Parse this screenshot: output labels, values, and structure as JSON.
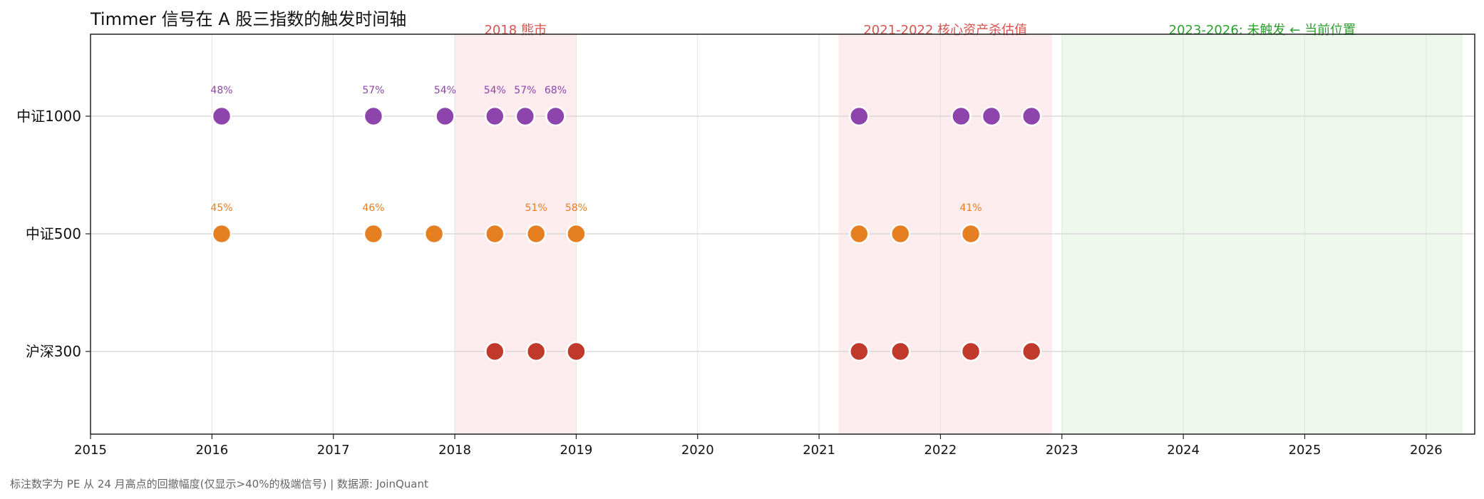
{
  "chart_data": {
    "type": "scatter",
    "title": "Timmer 信号在 A 股三指数的触发时间轴",
    "xlim": [
      2015,
      2026.4
    ],
    "x_ticks": [
      "2015",
      "2016",
      "2017",
      "2018",
      "2019",
      "2020",
      "2021",
      "2022",
      "2023",
      "2024",
      "2025",
      "2026"
    ],
    "grid": true,
    "bands": [
      {
        "label": "2018 熊市",
        "x": [
          2018.0,
          2019.0
        ],
        "color": "#fdecee",
        "text_color": "#d9534f"
      },
      {
        "label": "2021-2022 核心资产杀估值",
        "x": [
          2021.16,
          2022.92
        ],
        "color": "#fdecee",
        "text_color": "#d9534f"
      },
      {
        "label": "2023-2026: 未触发 ← 当前位置",
        "x": [
          2023.0,
          2026.3
        ],
        "color": "#eef7ec",
        "text_color": "#2ca02c"
      }
    ],
    "series": [
      {
        "name": "中证1000",
        "color": "#8e44ad",
        "points": [
          {
            "x": 2016.08,
            "label": "48%"
          },
          {
            "x": 2017.33,
            "label": "57%"
          },
          {
            "x": 2017.92,
            "label": "54%"
          },
          {
            "x": 2018.33,
            "label": "54%"
          },
          {
            "x": 2018.58,
            "label": "57%"
          },
          {
            "x": 2018.83,
            "label": "68%"
          },
          {
            "x": 2021.33,
            "label": ""
          },
          {
            "x": 2022.17,
            "label": ""
          },
          {
            "x": 2022.42,
            "label": ""
          },
          {
            "x": 2022.75,
            "label": ""
          }
        ]
      },
      {
        "name": "中证500",
        "color": "#e67e22",
        "points": [
          {
            "x": 2016.08,
            "label": "45%"
          },
          {
            "x": 2017.33,
            "label": "46%"
          },
          {
            "x": 2017.83,
            "label": ""
          },
          {
            "x": 2018.33,
            "label": ""
          },
          {
            "x": 2018.67,
            "label": "51%"
          },
          {
            "x": 2019.0,
            "label": "58%"
          },
          {
            "x": 2021.33,
            "label": ""
          },
          {
            "x": 2021.67,
            "label": ""
          },
          {
            "x": 2022.25,
            "label": "41%"
          }
        ]
      },
      {
        "name": "沪深300",
        "color": "#c0392b",
        "points": [
          {
            "x": 2018.33,
            "label": ""
          },
          {
            "x": 2018.67,
            "label": ""
          },
          {
            "x": 2019.0,
            "label": ""
          },
          {
            "x": 2021.33,
            "label": ""
          },
          {
            "x": 2021.67,
            "label": ""
          },
          {
            "x": 2022.25,
            "label": ""
          },
          {
            "x": 2022.75,
            "label": ""
          }
        ]
      }
    ]
  },
  "footnote": "标注数字为 PE 从 24 月高点的回撤幅度(仅显示>40%的极端信号)  |  数据源: JoinQuant"
}
